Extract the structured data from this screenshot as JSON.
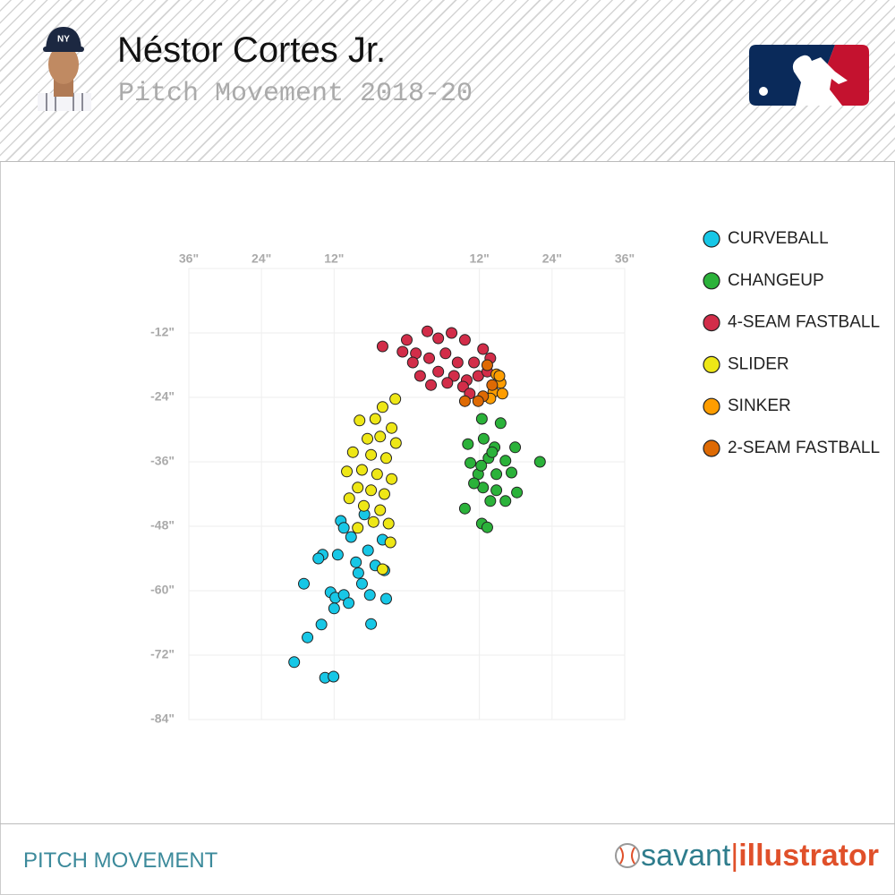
{
  "header": {
    "title": "Néstor Cortes Jr.",
    "subtitle": "Pitch Movement 2018-20"
  },
  "footer": {
    "label": "PITCH MOVEMENT",
    "brand_left": "savant",
    "brand_right": "illustrator"
  },
  "chart_data": {
    "type": "scatter",
    "xlim": [
      -36,
      36
    ],
    "xticks": [
      {
        "value": -36,
        "label": "36\""
      },
      {
        "value": -24,
        "label": "24\""
      },
      {
        "value": -12,
        "label": "12\""
      },
      {
        "value": 12,
        "label": "12\""
      },
      {
        "value": 24,
        "label": "24\""
      },
      {
        "value": 36,
        "label": "36\""
      }
    ],
    "ylim": [
      -84,
      0
    ],
    "yticks": [
      {
        "value": -12,
        "label": "-12\""
      },
      {
        "value": -24,
        "label": "-24\""
      },
      {
        "value": -36,
        "label": "-36\""
      },
      {
        "value": -48,
        "label": "-48\""
      },
      {
        "value": -60,
        "label": "-60\""
      },
      {
        "value": -72,
        "label": "-72\""
      },
      {
        "value": -84,
        "label": "-84\""
      }
    ],
    "grid": true,
    "series": [
      {
        "name": "CURVEBALL",
        "color": "#17c7e6",
        "x": [
          -10.9,
          -13.9,
          -14.6,
          -11.4,
          -17.0,
          -12.6,
          -11.8,
          -10.4,
          -12.0,
          -14.1,
          -16.4,
          -18.6,
          -13.5,
          -12.1,
          -5.9,
          -3.4,
          -6.1,
          -7.4,
          -8.4,
          -6.4,
          -4.0,
          -3.7,
          -9.2,
          -10.4,
          -7.0,
          -5.2,
          -8.0,
          -9.6
        ],
        "values": [
          -47.0,
          -53.3,
          -54.0,
          -53.3,
          -58.7,
          -60.3,
          -61.3,
          -60.8,
          -63.3,
          -66.3,
          -68.7,
          -73.3,
          -76.2,
          -76.0,
          -66.2,
          -61.5,
          -60.8,
          -58.7,
          -54.7,
          -52.5,
          -50.5,
          -56.2,
          -50.0,
          -48.3,
          -45.8,
          -55.3,
          -56.7,
          -62.3
        ]
      },
      {
        "name": "CHANGEUP",
        "color": "#2bb23a",
        "x": [
          12.4,
          15.5,
          10.1,
          12.7,
          14.5,
          17.9,
          22.0,
          10.5,
          13.5,
          16.3,
          11.8,
          14.8,
          17.3,
          12.6,
          14.8,
          18.2,
          11.1,
          13.8,
          16.3,
          9.6,
          12.4,
          13.3,
          14.1,
          12.3
        ],
        "values": [
          -28.0,
          -28.8,
          -32.7,
          -31.7,
          -33.3,
          -33.3,
          -36.0,
          -36.2,
          -35.3,
          -35.8,
          -38.3,
          -38.3,
          -38.0,
          -40.8,
          -41.3,
          -41.7,
          -40.0,
          -43.3,
          -43.3,
          -44.7,
          -47.5,
          -48.2,
          -34.2,
          -36.7
        ]
      },
      {
        "name": "4-SEAM FASTBALL",
        "color": "#d22d49",
        "x": [
          -4.0,
          0,
          1.5,
          3.4,
          5.2,
          7.4,
          9.6,
          12.6,
          13.8,
          1.0,
          3.7,
          6.4,
          8.4,
          11.1,
          2.2,
          5.2,
          7.8,
          9.9,
          11.8,
          4.0,
          6.7,
          9.3,
          -0.7,
          13.3,
          10.4
        ],
        "values": [
          -14.5,
          -13.3,
          -15.8,
          -11.7,
          -13.0,
          -12.0,
          -13.3,
          -15.0,
          -16.7,
          -17.5,
          -16.7,
          -15.8,
          -17.5,
          -17.5,
          -20.0,
          -19.2,
          -20.0,
          -20.8,
          -20.0,
          -21.7,
          -21.3,
          -22.0,
          -15.5,
          -19.2,
          -23.3
        ]
      },
      {
        "name": "SLIDER",
        "color": "#eee716",
        "x": [
          -1.9,
          -4.0,
          -7.8,
          -5.2,
          -2.5,
          -6.5,
          -4.4,
          -1.8,
          -8.9,
          -5.9,
          -3.4,
          -9.9,
          -7.4,
          -4.9,
          -2.5,
          -8.1,
          -5.9,
          -3.7,
          -9.5,
          -7.1,
          -4.4,
          -5.5,
          -3.0,
          -2.7,
          -4.0,
          -8.1
        ],
        "values": [
          -24.3,
          -25.8,
          -28.3,
          -28.0,
          -29.7,
          -31.7,
          -31.3,
          -32.5,
          -34.2,
          -34.7,
          -35.3,
          -37.8,
          -37.5,
          -38.3,
          -39.2,
          -40.8,
          -41.3,
          -42.0,
          -42.8,
          -44.2,
          -45.0,
          -47.2,
          -47.5,
          -51.0,
          -56.0,
          -48.3
        ]
      },
      {
        "name": "SINKER",
        "color": "#fe9d00",
        "x": [
          14.8,
          15.5,
          14.3,
          15.8,
          13.8,
          15.3
        ],
        "values": [
          -19.7,
          -21.3,
          -23.0,
          -23.3,
          -24.2,
          -20.0
        ]
      },
      {
        "name": "2-SEAM FASTBALL",
        "color": "#de6a04",
        "x": [
          13.3,
          14.1,
          12.6,
          9.6,
          11.8
        ],
        "values": [
          -18.0,
          -21.7,
          -23.8,
          -24.7,
          -24.7
        ]
      }
    ]
  }
}
